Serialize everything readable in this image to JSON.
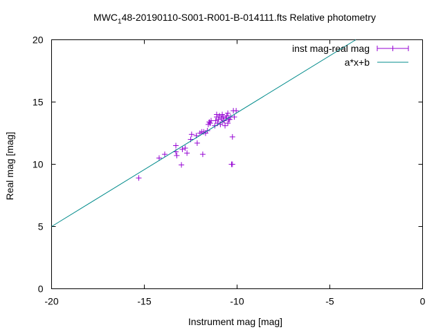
{
  "chart_data": {
    "type": "scatter",
    "title": "MWC",
    "title_sub": "1",
    "title_rest": "48-20190110-S001-R001-B-014111.fts Relative photometry",
    "xlabel": "Instrument mag [mag]",
    "ylabel": "Real mag [mag]",
    "xlim": [
      -20,
      0
    ],
    "ylim": [
      0,
      20
    ],
    "xticks": [
      -20,
      -15,
      -10,
      -5,
      0
    ],
    "yticks": [
      0,
      5,
      10,
      15,
      20
    ],
    "grid": false,
    "legend_position": "top-right",
    "series": [
      {
        "name": "inst mag-real mag",
        "kind": "points",
        "color": "#9400d3",
        "points": [
          [
            -15.3,
            8.9
          ],
          [
            -14.2,
            10.5
          ],
          [
            -13.9,
            10.8
          ],
          [
            -13.3,
            11.0
          ],
          [
            -13.3,
            11.5
          ],
          [
            -13.25,
            10.7
          ],
          [
            -13.0,
            9.95
          ],
          [
            -12.95,
            11.2
          ],
          [
            -12.8,
            11.3
          ],
          [
            -12.7,
            10.9
          ],
          [
            -12.5,
            12.0
          ],
          [
            -12.45,
            12.4
          ],
          [
            -12.2,
            12.3
          ],
          [
            -12.15,
            11.7
          ],
          [
            -12.0,
            12.5
          ],
          [
            -11.9,
            12.6
          ],
          [
            -11.8,
            12.6
          ],
          [
            -11.85,
            10.8
          ],
          [
            -11.7,
            12.5
          ],
          [
            -11.6,
            12.7
          ],
          [
            -11.55,
            13.2
          ],
          [
            -11.5,
            13.4
          ],
          [
            -11.45,
            13.3
          ],
          [
            -11.4,
            13.5
          ],
          [
            -11.2,
            13.1
          ],
          [
            -11.15,
            13.5
          ],
          [
            -11.1,
            13.8
          ],
          [
            -11.1,
            14.0
          ],
          [
            -11.05,
            13.3
          ],
          [
            -11.0,
            13.6
          ],
          [
            -10.95,
            13.9
          ],
          [
            -10.9,
            13.2
          ],
          [
            -10.85,
            13.7
          ],
          [
            -10.8,
            14.0
          ],
          [
            -10.8,
            13.4
          ],
          [
            -10.75,
            13.8
          ],
          [
            -10.7,
            13.5
          ],
          [
            -10.65,
            13.1
          ],
          [
            -10.6,
            13.7
          ],
          [
            -10.55,
            13.9
          ],
          [
            -10.5,
            13.3
          ],
          [
            -10.5,
            14.1
          ],
          [
            -10.45,
            13.6
          ],
          [
            -10.4,
            13.6
          ],
          [
            -10.35,
            13.8
          ],
          [
            -10.3,
            10.0
          ],
          [
            -10.25,
            12.2
          ],
          [
            -10.2,
            14.3
          ],
          [
            -10.15,
            13.8
          ],
          [
            -10.05,
            14.3
          ],
          [
            -10.25,
            10.0
          ]
        ]
      },
      {
        "name": "a*x+b",
        "kind": "line",
        "color": "#008b8b",
        "line": {
          "x": [
            -20,
            -3.6
          ],
          "y": [
            5.0,
            20.0
          ]
        }
      }
    ]
  }
}
